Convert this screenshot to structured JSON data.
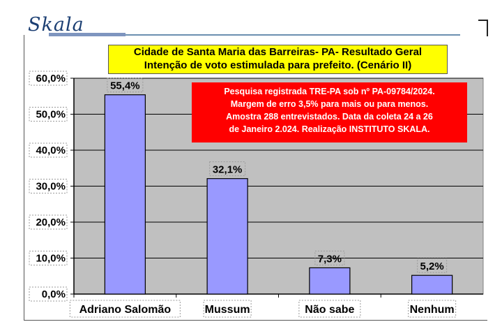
{
  "logo": {
    "text": "Skala"
  },
  "chart_data": {
    "type": "bar",
    "title_lines": [
      "Cidade de Santa Maria das Barreiras- PA- Resultado Geral",
      "Intenção de voto estimulada para prefeito. (Cenário II)"
    ],
    "categories": [
      "Adriano Salomão",
      "Mussum",
      "Não sabe",
      "Nenhum"
    ],
    "values": [
      55.4,
      32.1,
      7.3,
      5.2
    ],
    "data_labels": [
      "55,4%",
      "32,1%",
      "7,3%",
      "5,2%"
    ],
    "y_ticks": [
      "0,0%",
      "10,0%",
      "20,0%",
      "30,0%",
      "40,0%",
      "50,0%",
      "60,0%"
    ],
    "ylim": [
      0,
      60
    ],
    "grid": true,
    "colors": {
      "bar": "#9999ff",
      "plot_bg": "#c0c0c0",
      "title_bg": "#ffff00",
      "note_bg": "#ff0000"
    },
    "annotation_lines": [
      "Pesquisa registrada TRE-PA sob nº PA-09784/2024.",
      "Margem de erro 3,5% para mais ou para menos.",
      "Amostra 288 entrevistados. Data da coleta 24 a 26",
      "de Janeiro 2.024. Realização INSTITUTO SKALA."
    ]
  }
}
